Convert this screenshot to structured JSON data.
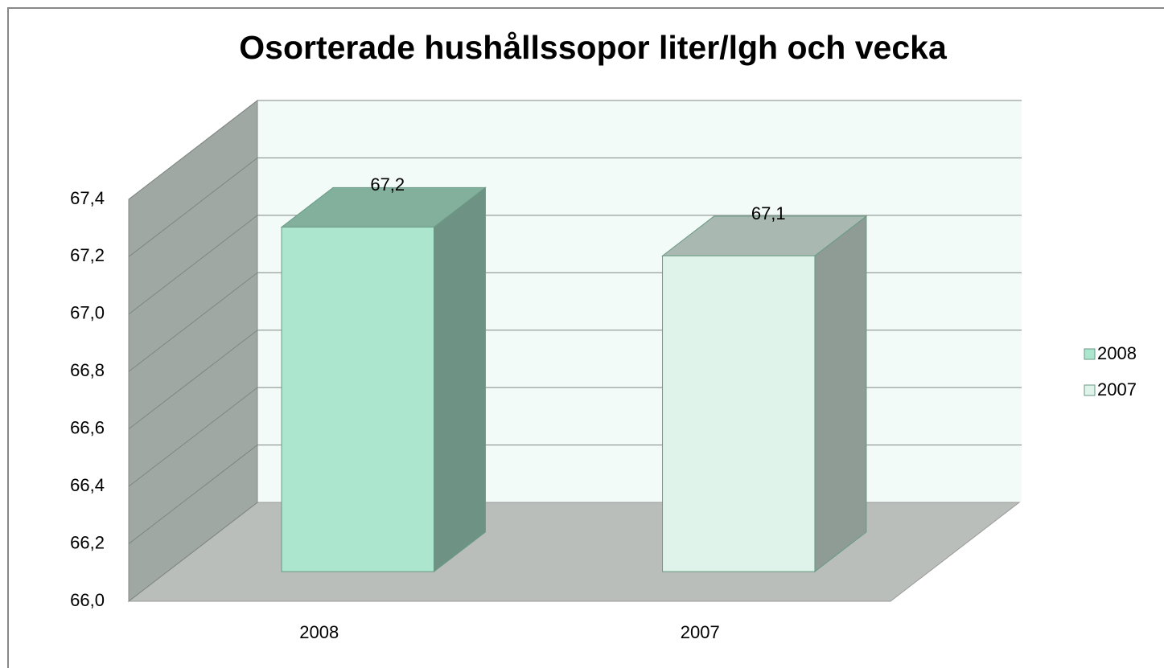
{
  "chart_data": {
    "type": "bar3d",
    "title": "Osorterade hushållssopor liter/lgh och vecka",
    "categories": [
      "2008",
      "2007"
    ],
    "series": [
      {
        "name": "2008",
        "color": "#ace6cf",
        "values": [
          67.2,
          null
        ],
        "value_labels": [
          "67,2",
          null
        ]
      },
      {
        "name": "2007",
        "color": "#dff3ea",
        "values": [
          null,
          67.1
        ],
        "value_labels": [
          null,
          "67,1"
        ]
      }
    ],
    "ylim": [
      66.0,
      67.4
    ],
    "yticks": [
      {
        "value": 66.0,
        "label": "66,0"
      },
      {
        "value": 66.2,
        "label": "66,2"
      },
      {
        "value": 66.4,
        "label": "66,4"
      },
      {
        "value": 66.6,
        "label": "66,6"
      },
      {
        "value": 66.8,
        "label": "66,8"
      },
      {
        "value": 67.0,
        "label": "67,0"
      },
      {
        "value": 67.2,
        "label": "67,2"
      },
      {
        "value": 67.4,
        "label": "67,4"
      }
    ],
    "grid": true,
    "legend": "right"
  }
}
